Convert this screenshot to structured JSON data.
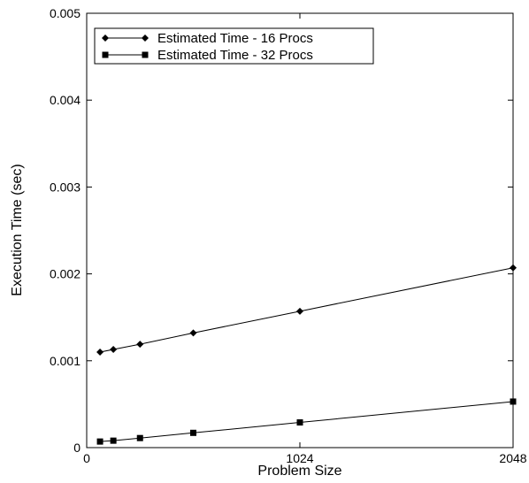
{
  "chart_data": {
    "type": "line",
    "title": "",
    "xlabel": "Problem Size",
    "ylabel": "Execution Time (sec)",
    "xlim": [
      0,
      2048
    ],
    "ylim": [
      0,
      0.005
    ],
    "x_ticks": [
      0,
      1024,
      2048
    ],
    "x_tick_labels": [
      "0",
      "1024",
      "2048"
    ],
    "y_ticks": [
      0,
      0.001,
      0.002,
      0.003,
      0.004,
      0.005
    ],
    "y_tick_labels": [
      "0",
      "0.001",
      "0.002",
      "0.003",
      "0.004",
      "0.005"
    ],
    "grid": false,
    "legend_position": "top-left",
    "series": [
      {
        "name": "Estimated Time - 16 Procs",
        "marker": "diamond",
        "color": "#000000",
        "x": [
          64,
          128,
          256,
          512,
          1024,
          2048
        ],
        "y": [
          0.0011,
          0.00113,
          0.00119,
          0.00132,
          0.00157,
          0.00207
        ]
      },
      {
        "name": "Estimated Time - 32 Procs",
        "marker": "square",
        "color": "#000000",
        "x": [
          64,
          128,
          256,
          512,
          1024,
          2048
        ],
        "y": [
          7e-05,
          8e-05,
          0.00011,
          0.00017,
          0.00029,
          0.00053
        ]
      }
    ]
  }
}
